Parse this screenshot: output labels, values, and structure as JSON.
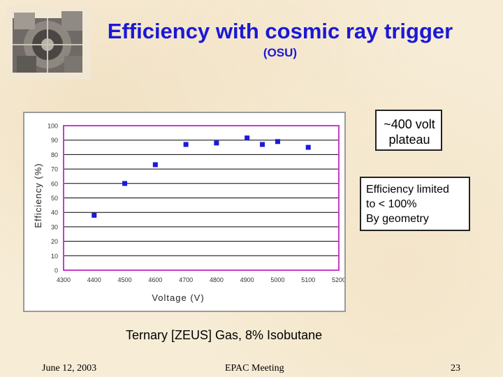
{
  "slide": {
    "title": "Efficiency  with cosmic ray trigger",
    "subtitle": "(OSU)",
    "callout_plateau_line1": "~400 volt",
    "callout_plateau_line2": "plateau",
    "callout_geometry_line1": "Efficiency limited",
    "callout_geometry_line2": "to < 100%",
    "callout_geometry_line3": "By geometry",
    "caption": "Ternary [ZEUS] Gas, 8% Isobutane",
    "footer_date": "June 12, 2003",
    "footer_meeting": "EPAC  Meeting",
    "footer_page": "23"
  },
  "chart_data": {
    "type": "scatter",
    "title": "",
    "xlabel": "Voltage (V)",
    "ylabel": "Efficiency (%)",
    "xlim": [
      4300,
      5200
    ],
    "ylim": [
      0,
      100
    ],
    "xticks": [
      4300,
      4400,
      4500,
      4600,
      4700,
      4800,
      4900,
      5000,
      5100,
      5200
    ],
    "yticks": [
      0,
      10,
      20,
      30,
      40,
      50,
      60,
      70,
      80,
      90,
      100
    ],
    "grid": true,
    "plot_border_color": "#c83cc8",
    "marker_color": "#1a1adc",
    "points": [
      {
        "x": 4400,
        "y": 38
      },
      {
        "x": 4500,
        "y": 60
      },
      {
        "x": 4600,
        "y": 73
      },
      {
        "x": 4700,
        "y": 87
      },
      {
        "x": 4800,
        "y": 88
      },
      {
        "x": 4900,
        "y": 91.5
      },
      {
        "x": 4950,
        "y": 87
      },
      {
        "x": 5000,
        "y": 89
      },
      {
        "x": 5100,
        "y": 85
      }
    ]
  }
}
